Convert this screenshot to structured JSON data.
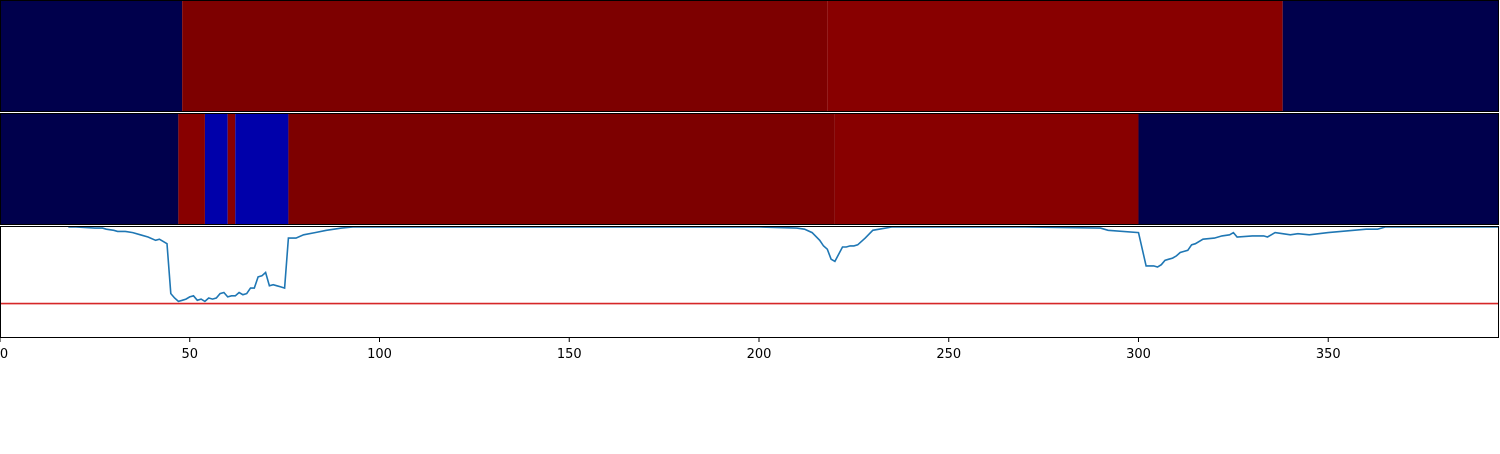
{
  "chart_data": {
    "type": "heatmap",
    "title": "",
    "xlabel": "",
    "ylabel": "",
    "xlim": [
      0,
      395
    ],
    "x_ticks": [
      0,
      50,
      100,
      150,
      200,
      250,
      300,
      350
    ],
    "x_tick_labels": [
      "0",
      "50",
      "100",
      "150",
      "200",
      "250",
      "300",
      "350"
    ],
    "legend": "none",
    "grid": false,
    "colors": {
      "dark_navy": "#00004c",
      "dark_red": "#7d0000",
      "red": "#880000",
      "blue": "#0000aa",
      "line": "#1f77b4",
      "threshold": "#d62728"
    },
    "heatmap_rows": [
      {
        "segments": [
          {
            "x0": 0,
            "x1": 48,
            "color": "#00004c"
          },
          {
            "x0": 48,
            "x1": 218,
            "color": "#7d0000"
          },
          {
            "x0": 218,
            "x1": 338,
            "color": "#880000"
          },
          {
            "x0": 338,
            "x1": 395,
            "color": "#00004c"
          }
        ]
      },
      {
        "segments": [
          {
            "x0": 0,
            "x1": 47,
            "color": "#00004c"
          },
          {
            "x0": 47,
            "x1": 54,
            "color": "#880000"
          },
          {
            "x0": 54,
            "x1": 60,
            "color": "#0000aa"
          },
          {
            "x0": 60,
            "x1": 62,
            "color": "#880000"
          },
          {
            "x0": 62,
            "x1": 76,
            "color": "#0000aa"
          },
          {
            "x0": 76,
            "x1": 220,
            "color": "#7d0000"
          },
          {
            "x0": 220,
            "x1": 300,
            "color": "#880000"
          },
          {
            "x0": 300,
            "x1": 395,
            "color": "#00004c"
          }
        ]
      }
    ],
    "line_panel": {
      "ylim": [
        0,
        1
      ],
      "threshold": 0.31,
      "x": [
        18,
        20,
        25,
        27,
        28,
        30,
        31,
        33,
        35,
        37,
        39,
        41,
        42,
        43,
        44,
        45,
        46,
        47,
        48,
        49,
        50,
        51,
        52,
        53,
        54,
        55,
        56,
        57,
        58,
        59,
        60,
        61,
        62,
        63,
        64,
        65,
        66,
        67,
        68,
        69,
        70,
        71,
        72,
        73,
        74,
        75,
        76,
        77,
        78,
        80,
        83,
        86,
        90,
        93,
        100,
        130,
        200,
        210,
        212,
        214,
        216,
        217,
        218,
        219,
        220,
        222,
        223,
        224,
        225,
        226,
        228,
        230,
        235,
        240,
        250,
        270,
        290,
        292,
        300,
        302,
        304,
        305,
        306,
        307,
        308,
        309,
        310,
        311,
        312,
        313,
        314,
        315,
        317,
        320,
        322,
        324,
        325,
        326,
        330,
        333,
        334,
        335,
        336,
        338,
        340,
        342,
        345,
        350,
        360,
        363,
        364,
        365,
        370,
        395
      ],
      "y": [
        1.0,
        1.0,
        0.99,
        0.99,
        0.98,
        0.97,
        0.96,
        0.96,
        0.95,
        0.93,
        0.91,
        0.88,
        0.89,
        0.87,
        0.85,
        0.4,
        0.36,
        0.33,
        0.34,
        0.35,
        0.37,
        0.38,
        0.34,
        0.35,
        0.33,
        0.36,
        0.35,
        0.36,
        0.4,
        0.41,
        0.37,
        0.38,
        0.38,
        0.41,
        0.39,
        0.4,
        0.45,
        0.45,
        0.55,
        0.56,
        0.59,
        0.47,
        0.48,
        0.47,
        0.46,
        0.45,
        0.9,
        0.9,
        0.9,
        0.93,
        0.95,
        0.97,
        0.99,
        1.0,
        1.0,
        1.0,
        1.0,
        0.99,
        0.98,
        0.95,
        0.88,
        0.83,
        0.8,
        0.71,
        0.69,
        0.82,
        0.82,
        0.83,
        0.83,
        0.84,
        0.9,
        0.97,
        1.0,
        1.0,
        1.0,
        1.0,
        0.99,
        0.97,
        0.95,
        0.65,
        0.65,
        0.64,
        0.66,
        0.7,
        0.71,
        0.72,
        0.74,
        0.77,
        0.78,
        0.79,
        0.84,
        0.85,
        0.89,
        0.9,
        0.92,
        0.93,
        0.95,
        0.91,
        0.92,
        0.92,
        0.91,
        0.93,
        0.95,
        0.94,
        0.93,
        0.94,
        0.93,
        0.95,
        0.98,
        0.98,
        0.99,
        1.0,
        1.0,
        1.0
      ]
    }
  }
}
